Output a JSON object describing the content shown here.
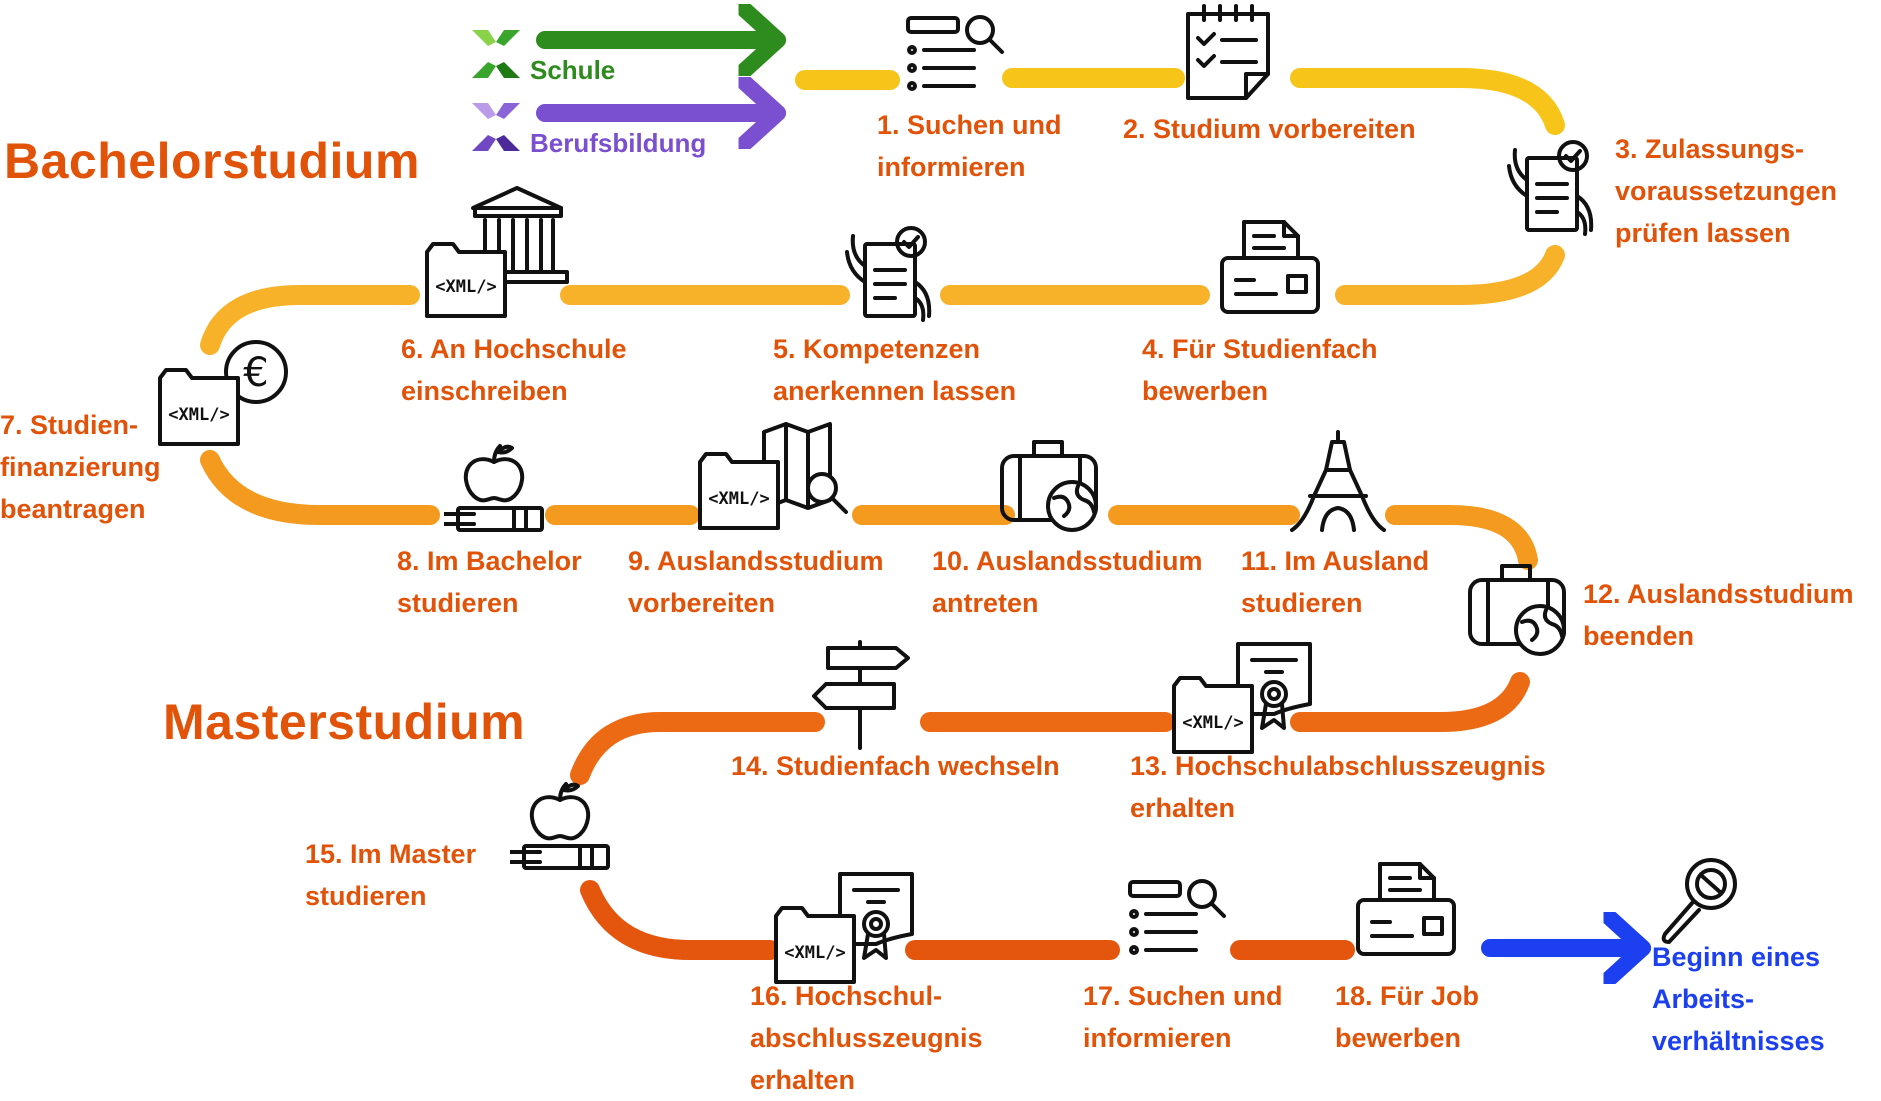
{
  "titles": {
    "bachelor": "Bachelorstudium",
    "master": "Masterstudium"
  },
  "legend": {
    "school": "Schule",
    "vocational": "Berufsbildung"
  },
  "steps": [
    {
      "lines": [
        "1. Suchen und",
        "informieren"
      ]
    },
    {
      "lines": [
        "2. Studium vorbereiten"
      ]
    },
    {
      "lines": [
        "3. Zulassungs-",
        "voraussetzungen",
        "prüfen lassen"
      ]
    },
    {
      "lines": [
        "4. Für Studienfach",
        "bewerben"
      ]
    },
    {
      "lines": [
        "5. Kompetenzen",
        "anerkennen lassen"
      ]
    },
    {
      "lines": [
        "6. An Hochschule",
        "einschreiben"
      ]
    },
    {
      "lines": [
        "7. Studien-",
        "finanzierung",
        "beantragen"
      ]
    },
    {
      "lines": [
        "8. Im Bachelor",
        "studieren"
      ]
    },
    {
      "lines": [
        "9. Auslandsstudium",
        "vorbereiten"
      ]
    },
    {
      "lines": [
        "10. Auslandsstudium",
        "antreten"
      ]
    },
    {
      "lines": [
        "11. Im Ausland",
        "studieren"
      ]
    },
    {
      "lines": [
        "12. Auslandsstudium",
        "beenden"
      ]
    },
    {
      "lines": [
        "13. Hochschulabschlusszeugnis",
        "erhalten"
      ]
    },
    {
      "lines": [
        "14. Studienfach wechseln"
      ]
    },
    {
      "lines": [
        "15. Im Master",
        "studieren"
      ]
    },
    {
      "lines": [
        "16. Hochschul-",
        "abschlusszeugnis",
        "erhalten"
      ]
    },
    {
      "lines": [
        "17. Suchen und",
        "informieren"
      ]
    },
    {
      "lines": [
        "18. Für Job",
        "bewerben"
      ]
    }
  ],
  "final_step": {
    "lines": [
      "Beginn eines",
      "Arbeits-",
      "verhältnisses"
    ]
  },
  "icons": {
    "xml_label": "<XML/>",
    "euro_symbol": "€",
    "step_icons": [
      "search-list-icon",
      "checklist-notepad-icon",
      "document-check-hand-icon",
      "fax-icon",
      "document-check-hand-icon",
      "university-folder-icon",
      "euro-folder-icon",
      "apple-books-icon",
      "map-search-folder-icon",
      "luggage-globe-icon",
      "eiffel-tower-icon",
      "luggage-globe-icon",
      "certificate-folder-icon",
      "signpost-icon",
      "apple-books-icon",
      "certificate-folder-icon",
      "search-list-icon",
      "fax-icon",
      "job-search-icon"
    ]
  },
  "colors": {
    "school": "#2e8b1e",
    "vocational": "#7a4fd0",
    "label": "#e2530a",
    "final": "#1c3ff0",
    "path_yellow": "#f7c51a",
    "path_light_orange": "#f8b22a",
    "path_orange": "#f39a1f",
    "path_dark_orange": "#ec6a14",
    "path_red_orange": "#e4560d"
  }
}
